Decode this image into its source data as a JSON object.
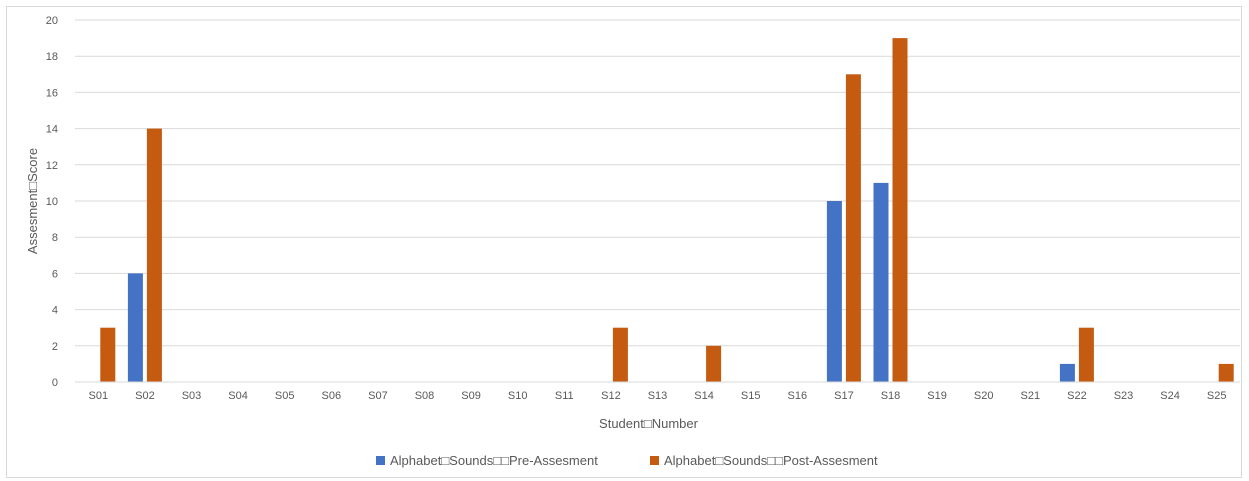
{
  "chart_data": {
    "type": "bar",
    "title": "",
    "xlabel": "Student□Number",
    "ylabel": "Assesment□Score",
    "ylim": [
      0,
      20
    ],
    "yticks": [
      0,
      2,
      4,
      6,
      8,
      10,
      12,
      14,
      16,
      18,
      20
    ],
    "grid": true,
    "legend_position": "bottom",
    "categories": [
      "S01",
      "S02",
      "S03",
      "S04",
      "S05",
      "S06",
      "S07",
      "S08",
      "S09",
      "S10",
      "S11",
      "S12",
      "S13",
      "S14",
      "S15",
      "S16",
      "S17",
      "S18",
      "S19",
      "S20",
      "S21",
      "S22",
      "S23",
      "S24",
      "S25"
    ],
    "series": [
      {
        "name": "Alphabet□Sounds□□Pre-Assesment",
        "color": "#4472c4",
        "values": [
          0,
          6,
          0,
          0,
          0,
          0,
          0,
          0,
          0,
          0,
          0,
          0,
          0,
          0,
          0,
          0,
          10,
          11,
          0,
          0,
          0,
          1,
          0,
          0,
          0
        ]
      },
      {
        "name": "Alphabet□Sounds□□Post-Assesment",
        "color": "#c55a11",
        "values": [
          3,
          14,
          0,
          0,
          0,
          0,
          0,
          0,
          0,
          0,
          0,
          3,
          0,
          2,
          0,
          0,
          17,
          19,
          0,
          0,
          0,
          3,
          0,
          0,
          1
        ]
      }
    ]
  }
}
